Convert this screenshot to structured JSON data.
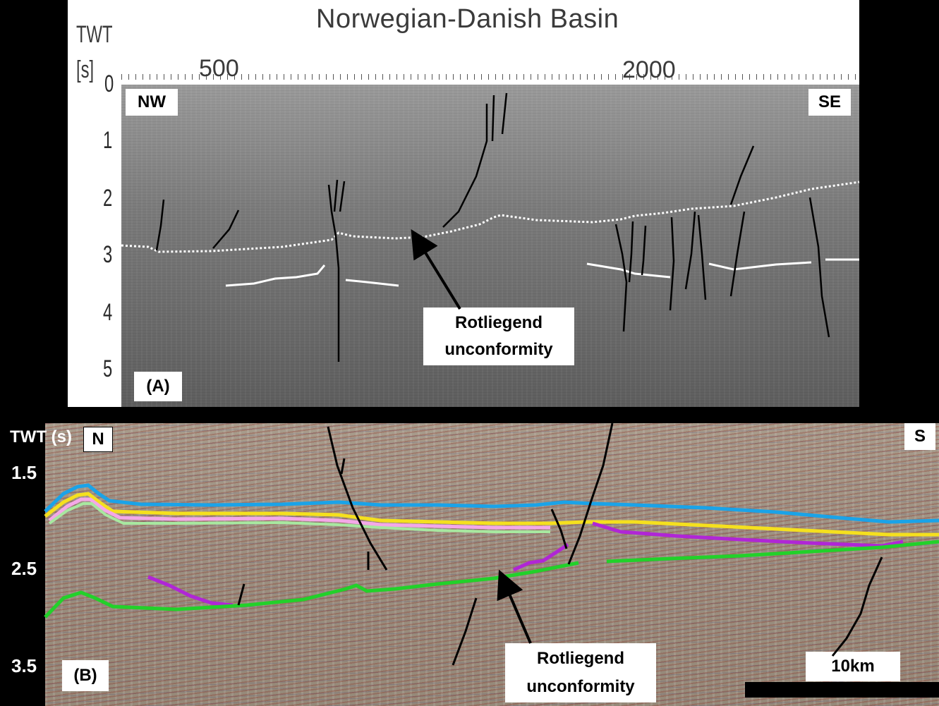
{
  "panel_a": {
    "title": "Norwegian-Danish Basin",
    "axis_label_line1": "TWT",
    "axis_label_line2": "[s]",
    "y_ticks": [
      "0",
      "1",
      "2",
      "3",
      "4",
      "5"
    ],
    "x_ticks": [
      "500",
      "2000"
    ],
    "left_direction": "NW",
    "right_direction": "SE",
    "panel_label": "(A)",
    "annotation_line1": "Rotliegend",
    "annotation_line2": "unconformity"
  },
  "panel_b": {
    "axis_label": "TWT (s)",
    "y_ticks": [
      "1.5",
      "2.5",
      "3.5"
    ],
    "left_direction": "N",
    "right_direction": "S",
    "panel_label": "(B)",
    "annotation_line1": "Rotliegend",
    "annotation_line2": "unconformity",
    "scale_label": "10km"
  },
  "colors": {
    "horizon_blue": "#1aa3e8",
    "horizon_yellow": "#f5e01e",
    "horizon_pink": "#f4a8e8",
    "horizon_lightgreen": "#a8e8a0",
    "horizon_purple": "#b026d6",
    "horizon_green": "#22d12a",
    "fault_black": "#000000",
    "unconformity_white": "#ffffff"
  }
}
